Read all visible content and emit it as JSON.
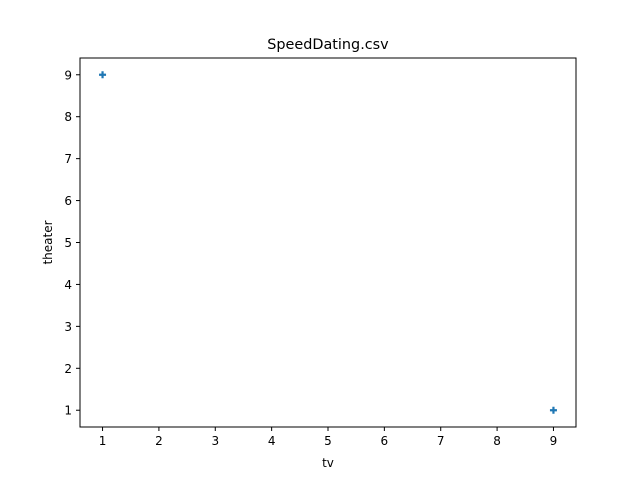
{
  "chart_data": {
    "type": "scatter",
    "title": "SpeedDating.csv",
    "xlabel": "tv",
    "ylabel": "theater",
    "xlim": [
      0.6,
      9.4
    ],
    "ylim": [
      0.6,
      9.4
    ],
    "x_ticks": [
      1,
      2,
      3,
      4,
      5,
      6,
      7,
      8,
      9
    ],
    "y_ticks": [
      1,
      2,
      3,
      4,
      5,
      6,
      7,
      8,
      9
    ],
    "grid": false,
    "marker": "plus",
    "colors": {
      "marker": "#1f77b4"
    },
    "points": [
      {
        "x": 1,
        "y": 9
      },
      {
        "x": 9,
        "y": 1
      }
    ]
  }
}
